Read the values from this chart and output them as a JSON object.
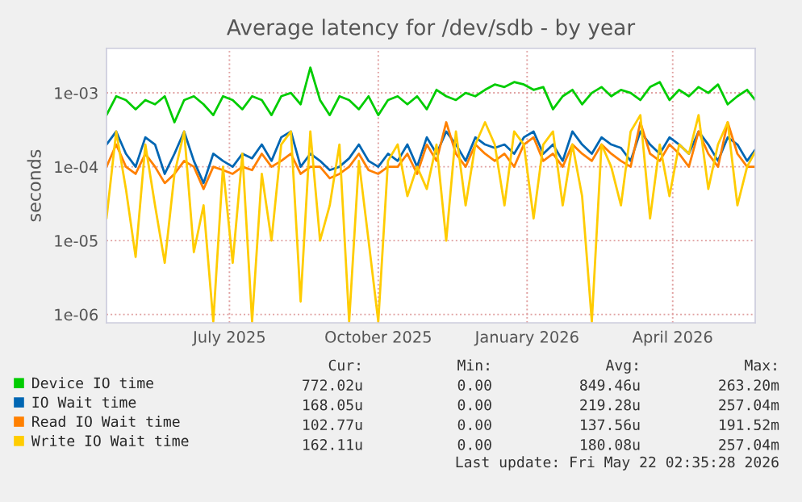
{
  "chart_data": {
    "type": "line",
    "title": "Average latency for /dev/sdb - by year",
    "ylabel": "seconds",
    "log": "y",
    "x": [
      "2025-04-16",
      "2025-04-22",
      "2025-04-28",
      "2025-05-04",
      "2025-05-10",
      "2025-05-16",
      "2025-05-22",
      "2025-05-28",
      "2025-06-03",
      "2025-06-09",
      "2025-06-15",
      "2025-06-21",
      "2025-06-27",
      "2025-07-03",
      "2025-07-09",
      "2025-07-15",
      "2025-07-21",
      "2025-07-27",
      "2025-08-02",
      "2025-08-08",
      "2025-08-14",
      "2025-08-20",
      "2025-08-26",
      "2025-09-01",
      "2025-09-07",
      "2025-09-13",
      "2025-09-19",
      "2025-09-25",
      "2025-10-01",
      "2025-10-07",
      "2025-10-13",
      "2025-10-19",
      "2025-10-25",
      "2025-10-31",
      "2025-11-06",
      "2025-11-12",
      "2025-11-18",
      "2025-11-24",
      "2025-11-30",
      "2025-12-06",
      "2025-12-12",
      "2025-12-18",
      "2025-12-24",
      "2025-12-30",
      "2026-01-05",
      "2026-01-11",
      "2026-01-17",
      "2026-01-23",
      "2026-01-29",
      "2026-02-04",
      "2026-02-10",
      "2026-02-16",
      "2026-02-22",
      "2026-02-28",
      "2026-03-06",
      "2026-03-12",
      "2026-03-18",
      "2026-03-24",
      "2026-03-30",
      "2026-04-05",
      "2026-04-11",
      "2026-04-17",
      "2026-04-23",
      "2026-04-29",
      "2026-05-05",
      "2026-05-11",
      "2026-05-17",
      "2026-05-22"
    ],
    "series": [
      {
        "name": "Device IO time",
        "color": "#00cc00",
        "values": [
          0.0005,
          0.0009,
          0.0008,
          0.0006,
          0.0008,
          0.0007,
          0.0009,
          0.0004,
          0.0008,
          0.0009,
          0.0007,
          0.0005,
          0.0009,
          0.0008,
          0.0006,
          0.0009,
          0.0008,
          0.0005,
          0.0009,
          0.001,
          0.0007,
          0.0022,
          0.0008,
          0.0005,
          0.0009,
          0.0008,
          0.0006,
          0.0009,
          0.0005,
          0.0008,
          0.0009,
          0.0007,
          0.0009,
          0.0006,
          0.0011,
          0.0009,
          0.0008,
          0.001,
          0.0009,
          0.0011,
          0.0013,
          0.0012,
          0.0014,
          0.0013,
          0.0011,
          0.0012,
          0.0006,
          0.0009,
          0.0011,
          0.0007,
          0.001,
          0.0012,
          0.0009,
          0.0011,
          0.001,
          0.0008,
          0.0012,
          0.0014,
          0.0008,
          0.0011,
          0.0009,
          0.0012,
          0.001,
          0.0013,
          0.0007,
          0.0009,
          0.0011,
          0.0008
        ]
      },
      {
        "name": "IO Wait time",
        "color": "#0066b3",
        "values": [
          0.0002,
          0.0003,
          0.00015,
          0.0001,
          0.00025,
          0.0002,
          8e-05,
          0.00015,
          0.0003,
          0.00012,
          6e-05,
          0.00015,
          0.00012,
          0.0001,
          0.00015,
          0.00013,
          0.0002,
          0.00012,
          0.00025,
          0.0003,
          0.0001,
          0.00015,
          0.00012,
          9e-05,
          0.0001,
          0.00013,
          0.0002,
          0.00012,
          0.0001,
          0.00015,
          0.00012,
          0.0002,
          0.0001,
          0.00025,
          0.00015,
          0.0003,
          0.0002,
          0.00012,
          0.00025,
          0.0002,
          0.00018,
          0.0002,
          0.00015,
          0.00025,
          0.0003,
          0.00015,
          0.0002,
          0.00012,
          0.0003,
          0.0002,
          0.00015,
          0.00025,
          0.0002,
          0.00018,
          0.00012,
          0.0003,
          0.0002,
          0.00015,
          0.00025,
          0.0002,
          0.00015,
          0.0003,
          0.0002,
          0.00012,
          0.00025,
          0.0002,
          0.00012,
          0.00017
        ]
      },
      {
        "name": "Read IO Wait time",
        "color": "#ff8000",
        "values": [
          0.0001,
          0.0002,
          0.0001,
          8e-05,
          0.00015,
          0.0001,
          6e-05,
          8e-05,
          0.00012,
          0.0001,
          5e-05,
          0.0001,
          9e-05,
          8e-05,
          0.0001,
          9e-05,
          0.00015,
          0.0001,
          0.00012,
          0.00015,
          8e-05,
          0.0001,
          0.0001,
          7e-05,
          8e-05,
          0.0001,
          0.00015,
          9e-05,
          8e-05,
          0.0001,
          0.0001,
          0.00015,
          8e-05,
          0.0002,
          0.00012,
          0.0004,
          0.00015,
          0.0001,
          0.0002,
          0.00015,
          0.00012,
          0.00015,
          0.0001,
          0.0002,
          0.00025,
          0.00012,
          0.00015,
          0.0001,
          0.0002,
          0.00015,
          0.00012,
          0.0002,
          0.00015,
          0.00012,
          0.0001,
          0.0004,
          0.00015,
          0.00012,
          0.0002,
          0.00015,
          0.0001,
          0.0003,
          0.00015,
          0.0001,
          0.0004,
          0.00015,
          0.0001,
          0.0001
        ]
      },
      {
        "name": "Write IO Wait time",
        "color": "#ffcc00",
        "values": [
          2e-05,
          0.0003,
          5e-05,
          6e-06,
          0.0002,
          3e-05,
          5e-06,
          8e-05,
          0.0003,
          7e-06,
          3e-05,
          8e-07,
          0.0001,
          5e-06,
          0.00015,
          8e-07,
          8e-05,
          1e-05,
          0.0002,
          0.0003,
          1.5e-06,
          0.0003,
          1e-05,
          3e-05,
          0.0002,
          8e-07,
          0.00012,
          1e-05,
          8e-07,
          0.00012,
          0.0002,
          4e-05,
          0.0001,
          5e-05,
          0.0002,
          1e-05,
          0.0003,
          3e-05,
          0.0002,
          0.0004,
          0.0002,
          3e-05,
          0.0003,
          0.0002,
          2e-05,
          0.0002,
          0.0003,
          3e-05,
          0.0002,
          4e-05,
          8e-07,
          0.0002,
          0.0001,
          3e-05,
          0.0003,
          0.0005,
          2e-05,
          0.0002,
          4e-05,
          0.0002,
          0.00015,
          0.0005,
          5e-05,
          0.0002,
          0.0004,
          3e-05,
          0.0001,
          0.00016
        ]
      }
    ],
    "xlim": [
      "2025-04-16",
      "2026-05-22"
    ],
    "xticks": [
      {
        "value": "2025-07-01",
        "label": "July 2025"
      },
      {
        "value": "2025-10-01",
        "label": "October 2025"
      },
      {
        "value": "2026-01-01",
        "label": "January 2026"
      },
      {
        "value": "2026-04-01",
        "label": "April 2026"
      }
    ],
    "ylim": [
      7.7e-07,
      0.004
    ],
    "yticks": [
      {
        "value": 1e-06,
        "label": "1e-06"
      },
      {
        "value": 1e-05,
        "label": "1e-05"
      },
      {
        "value": 0.0001,
        "label": "1e-04"
      },
      {
        "value": 0.001,
        "label": "1e-03"
      }
    ],
    "grid": true,
    "legend": "bottom",
    "marker": "none",
    "line_style": "solid",
    "annotations": [
      "Cur:",
      "Min:",
      "Avg:",
      "Max:",
      "772.02u",
      "0.00",
      "849.46u",
      "263.20m",
      "168.05u",
      "0.00",
      "219.28u",
      "257.04m",
      "102.77u",
      "0.00",
      "137.56u",
      "191.52m",
      "162.11u",
      "0.00",
      "180.08u",
      "257.04m",
      "Last update: Fri May 22 02:35:28 2026"
    ]
  }
}
